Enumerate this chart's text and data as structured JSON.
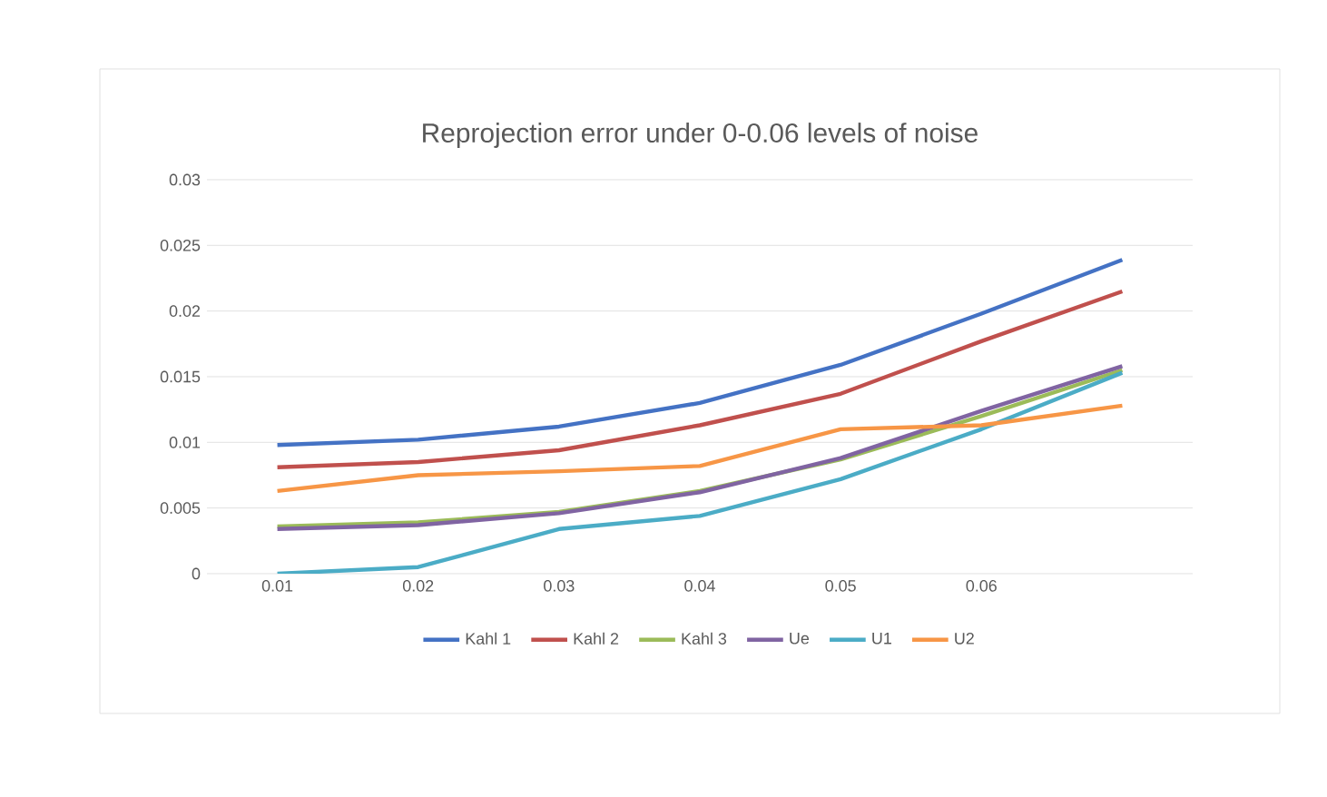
{
  "chart_data": {
    "type": "line",
    "title": "Reprojection error under 0-0.06 levels of noise",
    "categories": [
      "0.01",
      "0.02",
      "0.03",
      "0.04",
      "0.05",
      "0.06",
      null
    ],
    "series": [
      {
        "name": "Kahl 1",
        "color": "#4472c4",
        "values": [
          0.0098,
          0.0102,
          0.0112,
          0.013,
          0.0159,
          0.0198,
          0.0239
        ]
      },
      {
        "name": "Kahl 2",
        "color": "#c0504d",
        "values": [
          0.0081,
          0.0085,
          0.0094,
          0.0113,
          0.0137,
          0.0177,
          0.0215
        ]
      },
      {
        "name": "Kahl 3",
        "color": "#9bbb59",
        "values": [
          0.0036,
          0.0039,
          0.0047,
          0.0063,
          0.0087,
          0.012,
          0.0155
        ]
      },
      {
        "name": "Ue",
        "color": "#8064a2",
        "values": [
          0.0034,
          0.0037,
          0.0046,
          0.0062,
          0.0088,
          0.0124,
          0.0158
        ]
      },
      {
        "name": "U1",
        "color": "#4bacc6",
        "values": [
          0.0,
          0.0005,
          0.0034,
          0.0044,
          0.0072,
          0.011,
          0.0153
        ]
      },
      {
        "name": "U2",
        "color": "#f79646",
        "values": [
          0.0063,
          0.0075,
          0.0078,
          0.0082,
          0.011,
          0.0113,
          0.0128
        ]
      }
    ],
    "ylim": [
      0,
      0.03
    ],
    "yticks": [
      0,
      0.005,
      0.01,
      0.015,
      0.02,
      0.025,
      0.03
    ],
    "grid": "y",
    "legend": "bottom",
    "marker": "none",
    "line_style": "solid"
  }
}
